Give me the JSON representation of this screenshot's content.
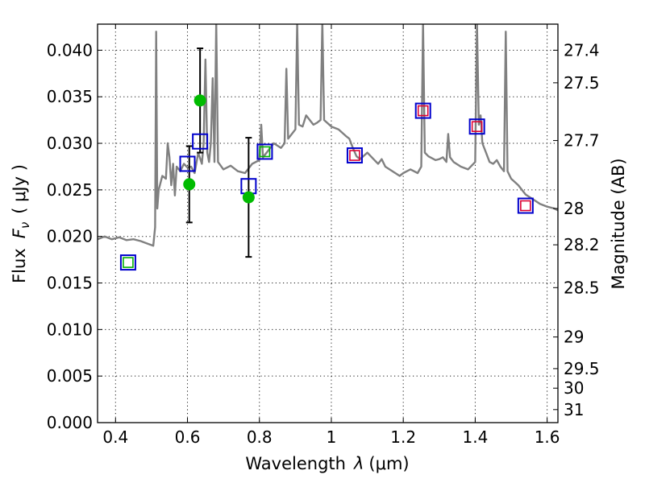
{
  "chart_data": {
    "type": "scatter",
    "title": "",
    "xlabel_prefix": "Wavelength",
    "xlabel_symbol": "λ",
    "xlabel_unit": "(μm)",
    "ylabel_prefix": "Flux",
    "ylabel_symbol": "F",
    "ylabel_subscript": "ν",
    "ylabel_unit": "( μJy )",
    "y2label": "Magnitude (AB)",
    "xlim": [
      0.35,
      1.63
    ],
    "ylim": [
      0.0,
      0.0428
    ],
    "grid": true,
    "x_ticks": [
      0.4,
      0.6,
      0.8,
      1.0,
      1.2,
      1.4,
      1.6
    ],
    "x_tick_labels": [
      "0.4",
      "0.6",
      "0.8",
      "1",
      "1.2",
      "1.4",
      "1.6"
    ],
    "y_ticks": [
      0.0,
      0.005,
      0.01,
      0.015,
      0.02,
      0.025,
      0.03,
      0.035,
      0.04
    ],
    "y_tick_labels": [
      "0.000",
      "0.005",
      "0.010",
      "0.015",
      "0.020",
      "0.025",
      "0.030",
      "0.035",
      "0.040"
    ],
    "y2_ticks": [
      {
        "label": "27.4",
        "flux": 0.04
      },
      {
        "label": "27.5",
        "flux": 0.0365
      },
      {
        "label": "27.7",
        "flux": 0.0303
      },
      {
        "label": "28",
        "flux": 0.023
      },
      {
        "label": "28.2",
        "flux": 0.0191
      },
      {
        "label": "28.5",
        "flux": 0.0145
      },
      {
        "label": "29",
        "flux": 0.0092
      },
      {
        "label": "29.5",
        "flux": 0.0058
      },
      {
        "label": "30",
        "flux": 0.0037
      },
      {
        "label": "31",
        "flux": 0.0014
      }
    ],
    "colors": {
      "spectrum": "#808080",
      "model_box": "#0000cc",
      "inner_green": "#00b000",
      "inner_red": "#dd0033",
      "observed": "#00bb00",
      "errorbar": "#000000"
    },
    "spectrum": [
      [
        0.35,
        0.0197
      ],
      [
        0.37,
        0.02
      ],
      [
        0.39,
        0.0197
      ],
      [
        0.41,
        0.0199
      ],
      [
        0.43,
        0.0196
      ],
      [
        0.45,
        0.0197
      ],
      [
        0.47,
        0.0195
      ],
      [
        0.49,
        0.0192
      ],
      [
        0.505,
        0.019
      ],
      [
        0.51,
        0.021
      ],
      [
        0.513,
        0.042
      ],
      [
        0.516,
        0.023
      ],
      [
        0.52,
        0.025
      ],
      [
        0.53,
        0.0265
      ],
      [
        0.54,
        0.0262
      ],
      [
        0.545,
        0.03
      ],
      [
        0.55,
        0.0285
      ],
      [
        0.555,
        0.0255
      ],
      [
        0.56,
        0.0278
      ],
      [
        0.565,
        0.0244
      ],
      [
        0.57,
        0.0275
      ],
      [
        0.58,
        0.027
      ],
      [
        0.59,
        0.0278
      ],
      [
        0.6,
        0.0274
      ],
      [
        0.61,
        0.0275
      ],
      [
        0.62,
        0.0268
      ],
      [
        0.63,
        0.029
      ],
      [
        0.64,
        0.0278
      ],
      [
        0.645,
        0.03
      ],
      [
        0.65,
        0.039
      ],
      [
        0.655,
        0.029
      ],
      [
        0.66,
        0.028
      ],
      [
        0.665,
        0.03
      ],
      [
        0.67,
        0.037
      ],
      [
        0.675,
        0.028
      ],
      [
        0.68,
        0.043
      ],
      [
        0.685,
        0.028
      ],
      [
        0.7,
        0.0272
      ],
      [
        0.72,
        0.0276
      ],
      [
        0.74,
        0.027
      ],
      [
        0.76,
        0.0268
      ],
      [
        0.78,
        0.0278
      ],
      [
        0.8,
        0.0282
      ],
      [
        0.805,
        0.032
      ],
      [
        0.81,
        0.0285
      ],
      [
        0.82,
        0.029
      ],
      [
        0.84,
        0.03
      ],
      [
        0.86,
        0.0295
      ],
      [
        0.87,
        0.03
      ],
      [
        0.875,
        0.038
      ],
      [
        0.88,
        0.0305
      ],
      [
        0.89,
        0.031
      ],
      [
        0.9,
        0.0315
      ],
      [
        0.905,
        0.043
      ],
      [
        0.91,
        0.032
      ],
      [
        0.92,
        0.0318
      ],
      [
        0.93,
        0.033
      ],
      [
        0.94,
        0.0325
      ],
      [
        0.95,
        0.032
      ],
      [
        0.96,
        0.0322
      ],
      [
        0.97,
        0.0325
      ],
      [
        0.975,
        0.043
      ],
      [
        0.98,
        0.0325
      ],
      [
        1.0,
        0.0318
      ],
      [
        1.02,
        0.0315
      ],
      [
        1.04,
        0.0308
      ],
      [
        1.05,
        0.0305
      ],
      [
        1.06,
        0.0295
      ],
      [
        1.07,
        0.0286
      ],
      [
        1.08,
        0.0283
      ],
      [
        1.1,
        0.029
      ],
      [
        1.12,
        0.0282
      ],
      [
        1.13,
        0.0278
      ],
      [
        1.14,
        0.0283
      ],
      [
        1.15,
        0.0275
      ],
      [
        1.17,
        0.027
      ],
      [
        1.19,
        0.0265
      ],
      [
        1.2,
        0.0268
      ],
      [
        1.22,
        0.0272
      ],
      [
        1.24,
        0.0268
      ],
      [
        1.25,
        0.0275
      ],
      [
        1.255,
        0.043
      ],
      [
        1.26,
        0.029
      ],
      [
        1.27,
        0.0286
      ],
      [
        1.29,
        0.0282
      ],
      [
        1.3,
        0.0283
      ],
      [
        1.31,
        0.0285
      ],
      [
        1.32,
        0.028
      ],
      [
        1.325,
        0.031
      ],
      [
        1.33,
        0.0285
      ],
      [
        1.34,
        0.028
      ],
      [
        1.36,
        0.0275
      ],
      [
        1.38,
        0.0272
      ],
      [
        1.4,
        0.028
      ],
      [
        1.405,
        0.043
      ],
      [
        1.41,
        0.032
      ],
      [
        1.415,
        0.033
      ],
      [
        1.42,
        0.03
      ],
      [
        1.43,
        0.029
      ],
      [
        1.44,
        0.028
      ],
      [
        1.45,
        0.0278
      ],
      [
        1.46,
        0.0282
      ],
      [
        1.47,
        0.0275
      ],
      [
        1.48,
        0.027
      ],
      [
        1.485,
        0.042
      ],
      [
        1.49,
        0.027
      ],
      [
        1.5,
        0.0262
      ],
      [
        1.52,
        0.0255
      ],
      [
        1.54,
        0.0245
      ],
      [
        1.56,
        0.024
      ],
      [
        1.58,
        0.0235
      ],
      [
        1.6,
        0.0232
      ],
      [
        1.62,
        0.023
      ],
      [
        1.63,
        0.0228
      ]
    ],
    "model_points": [
      {
        "x": 0.435,
        "y": 0.0172,
        "inner": "green"
      },
      {
        "x": 0.6,
        "y": 0.0278,
        "inner": "none"
      },
      {
        "x": 0.635,
        "y": 0.0302,
        "inner": "none"
      },
      {
        "x": 0.77,
        "y": 0.0254,
        "inner": "none"
      },
      {
        "x": 0.815,
        "y": 0.0291,
        "inner": "green"
      },
      {
        "x": 1.065,
        "y": 0.0287,
        "inner": "red"
      },
      {
        "x": 1.255,
        "y": 0.0335,
        "inner": "red"
      },
      {
        "x": 1.405,
        "y": 0.0318,
        "inner": "red"
      },
      {
        "x": 1.54,
        "y": 0.0233,
        "inner": "red"
      }
    ],
    "observed_points": [
      {
        "x": 0.605,
        "y": 0.0256,
        "err": [
          0.0215,
          0.0297
        ]
      },
      {
        "x": 0.635,
        "y": 0.0346,
        "err": [
          0.029,
          0.0402
        ]
      },
      {
        "x": 0.77,
        "y": 0.0242,
        "err": [
          0.0178,
          0.0306
        ]
      }
    ]
  }
}
